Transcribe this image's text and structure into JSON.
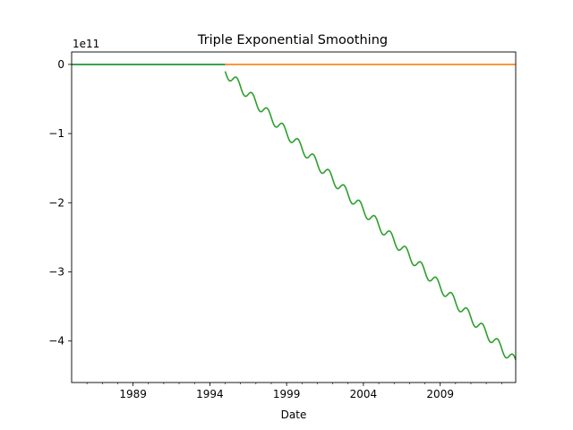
{
  "chart_data": {
    "type": "line",
    "title": "Triple Exponential Smoothing",
    "xlabel": "Date",
    "ylabel": "",
    "y_offset_label": "1e11",
    "y_multiplier": 100000000000.0,
    "xlim": [
      "1985-01-01",
      "2013-12-01"
    ],
    "ylim": [
      -4.6,
      0.18
    ],
    "x_ticks": [
      {
        "date": "1989-01-01",
        "label": "1989"
      },
      {
        "date": "1994-01-01",
        "label": "1994"
      },
      {
        "date": "1999-01-01",
        "label": "1999"
      },
      {
        "date": "2004-01-01",
        "label": "2004"
      },
      {
        "date": "2009-01-01",
        "label": "2009"
      }
    ],
    "y_ticks": [
      {
        "value": 0,
        "label": "0"
      },
      {
        "value": -1,
        "label": "−1"
      },
      {
        "value": -2,
        "label": "−2"
      },
      {
        "value": -3,
        "label": "−3"
      },
      {
        "value": -4,
        "label": "−4"
      }
    ],
    "grid": false,
    "legend": "none",
    "series": [
      {
        "color": "#1f77b4",
        "style": "flat",
        "x_range": [
          "1985-01-01",
          "1995-01-01"
        ],
        "y": 0
      },
      {
        "color": "#ff7f0e",
        "style": "flat",
        "x_range": [
          "1995-01-01",
          "2013-12-01"
        ],
        "y": 0
      },
      {
        "color": "#2ca02c",
        "style": "flat",
        "x_range": [
          "1985-01-01",
          "1995-01-01"
        ],
        "y": 0
      },
      {
        "color": "#2ca02c",
        "style": "seasonal",
        "x_range": [
          "1995-01-01",
          "2013-12-01"
        ],
        "start_value": -0.1,
        "trend_per_year": -0.2225,
        "season_amplitude": 0.075,
        "season_period_years": 1
      }
    ]
  }
}
